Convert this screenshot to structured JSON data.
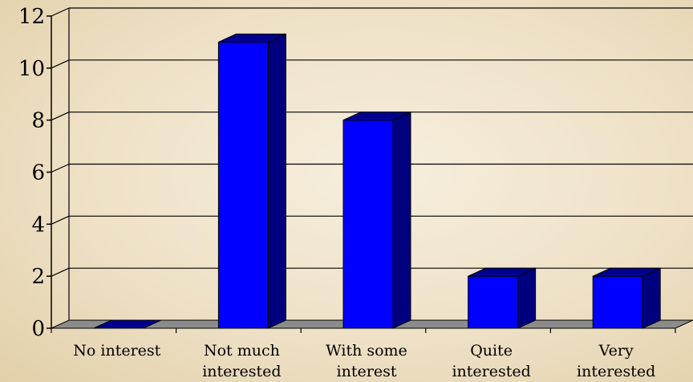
{
  "chart_data": {
    "type": "bar",
    "categories": [
      [
        "No interest"
      ],
      [
        "Not much",
        "interested"
      ],
      [
        "With some",
        "interest"
      ],
      [
        "Quite",
        "interested"
      ],
      [
        "Very",
        "interested"
      ]
    ],
    "values": [
      0,
      11,
      8,
      2,
      2
    ],
    "ylim": [
      0,
      12
    ],
    "yticks": [
      0,
      2,
      4,
      6,
      8,
      10,
      12
    ],
    "grid": true,
    "legend": "none",
    "colors": {
      "bar_front": "#0000ff",
      "bar_side": "#00007f",
      "bar_top": "#00008f",
      "floor": "#8c8c8c",
      "grid": "#000000"
    }
  }
}
